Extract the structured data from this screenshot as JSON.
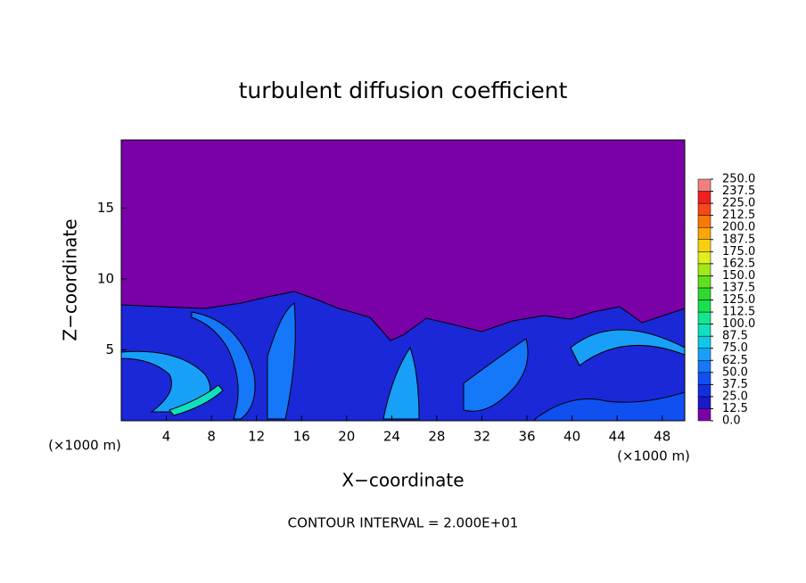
{
  "chart_data": {
    "type": "contour",
    "title": "turbulent diffusion coefficient",
    "x_label": "X−coordinate",
    "y_label": "Z−coordinate",
    "x_unit_left": "(×1000 m)",
    "x_unit_right": "(×1000 m)",
    "footer": "CONTOUR INTERVAL = 2.000E+01",
    "xlim": [
      0,
      50
    ],
    "ylim": [
      0,
      19.8
    ],
    "xticks": [
      4,
      8,
      12,
      16,
      20,
      24,
      28,
      32,
      36,
      40,
      44,
      48
    ],
    "yticks": [
      5,
      10,
      15
    ],
    "colorbar": {
      "ticks": [
        {
          "value": 0,
          "label": "0.0"
        },
        {
          "value": 12.5,
          "label": "12.5"
        },
        {
          "value": 25,
          "label": "25.0"
        },
        {
          "value": 37.5,
          "label": "37.5"
        },
        {
          "value": 50,
          "label": "50.0"
        },
        {
          "value": 62.5,
          "label": "62.5"
        },
        {
          "value": 75,
          "label": "75.0"
        },
        {
          "value": 87.5,
          "label": "87.5"
        },
        {
          "value": 100,
          "label": "100.0"
        },
        {
          "value": 112.5,
          "label": "112.5"
        },
        {
          "value": 125,
          "label": "125.0"
        },
        {
          "value": 137.5,
          "label": "137.5"
        },
        {
          "value": 150,
          "label": "150.0"
        },
        {
          "value": 162.5,
          "label": "162.5"
        },
        {
          "value": 175,
          "label": "175.0"
        },
        {
          "value": 187.5,
          "label": "187.5"
        },
        {
          "value": 200,
          "label": "200.0"
        },
        {
          "value": 212.5,
          "label": "212.5"
        },
        {
          "value": 225,
          "label": "225.0"
        },
        {
          "value": 237.5,
          "label": "237.5"
        },
        {
          "value": 250,
          "label": "250.0"
        }
      ],
      "colors": [
        "#7a00a8",
        "#1a18c8",
        "#1030e0",
        "#1050f0",
        "#1478f8",
        "#18a0f8",
        "#10c8e8",
        "#10e0c0",
        "#10e890",
        "#18e050",
        "#30d830",
        "#60e020",
        "#a0e818",
        "#e0f018",
        "#f8d010",
        "#f8a808",
        "#f87808",
        "#f84818",
        "#f02020",
        "#f08080"
      ]
    }
  }
}
